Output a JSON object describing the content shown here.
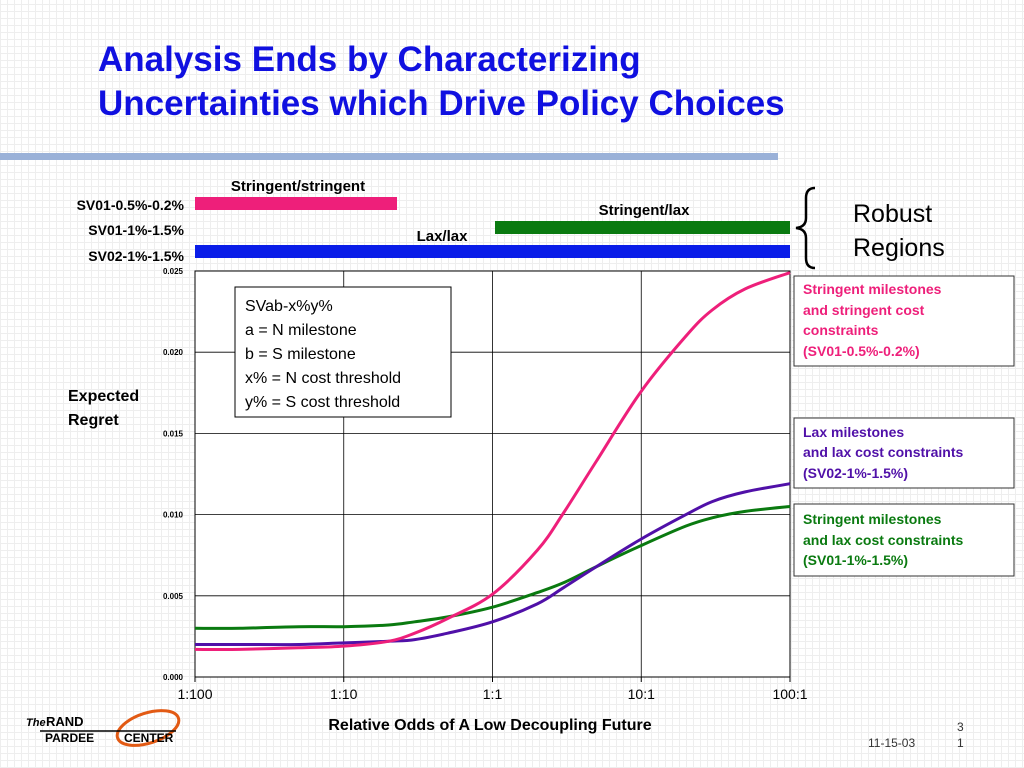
{
  "slide": {
    "title_line1": "Analysis Ends by Characterizing",
    "title_line2": "Uncertainties which Drive Policy Choices",
    "footer_date": "11-15-03",
    "footer_page_top": "3",
    "footer_page_bottom": "1",
    "logo": {
      "word_the": "The",
      "word_rand": "RAND",
      "word_pardee": "PARDEE",
      "word_center": "CENTER"
    }
  },
  "colors": {
    "title": "#1010e0",
    "pink": "#ee1f7a",
    "green": "#0a7a10",
    "blue": "#0a1de8",
    "purple": "#5010a8"
  },
  "robust": {
    "bars": [
      {
        "label": "SV01-0.5%-0.2%",
        "name": "Stringent/stringent",
        "from": "1:100",
        "to": "1:5",
        "color": "pink"
      },
      {
        "label": "SV01-1%-1.5%",
        "name": "Stringent/lax",
        "from": "1:1",
        "to": "100:1",
        "color": "green"
      },
      {
        "label": "SV02-1%-1.5%",
        "name": "Lax/lax",
        "from": "1:100",
        "to": "100:1",
        "color": "blue"
      }
    ],
    "brace_label_line1": "Robust",
    "brace_label_line2": "Regions"
  },
  "legend_box": {
    "lines": [
      "SVab-x%y%",
      "a = N milestone",
      "b = S milestone",
      "x% = N cost threshold",
      "y% = S cost threshold"
    ]
  },
  "callouts": [
    {
      "lines": [
        "Stringent milestones",
        "and stringent cost",
        "constraints",
        "(SV01-0.5%-0.2%)"
      ],
      "color": "pink"
    },
    {
      "lines": [
        "Lax milestones",
        "and lax cost constraints",
        "(SV02-1%-1.5%)"
      ],
      "color": "purple"
    },
    {
      "lines": [
        "Stringent milestones",
        "and lax cost constraints",
        "(SV01-1%-1.5%)"
      ],
      "color": "green"
    }
  ],
  "chart_data": {
    "type": "line",
    "xlabel": "Relative Odds of A Low Decoupling Future",
    "ylabel": "Expected Regret",
    "x_scale": "log",
    "x_ticks": [
      "1:100",
      "1:10",
      "1:1",
      "10:1",
      "100:1"
    ],
    "x": [
      0.01,
      0.02,
      0.05,
      0.1,
      0.2,
      0.3,
      0.5,
      1,
      2,
      3,
      5,
      10,
      20,
      30,
      50,
      100
    ],
    "ylim": [
      0,
      0.025
    ],
    "y_ticks": [
      "0.000",
      "0.005",
      "0.010",
      "0.015",
      "0.020",
      "0.025"
    ],
    "grid": true,
    "series": [
      {
        "name": "SV01-0.5%-0.2%",
        "color": "pink",
        "values": [
          0.0017,
          0.0017,
          0.0018,
          0.0019,
          0.0022,
          0.0027,
          0.0036,
          0.0051,
          0.0078,
          0.0101,
          0.0133,
          0.0176,
          0.021,
          0.0226,
          0.0239,
          0.0249
        ]
      },
      {
        "name": "SV02-1%-1.5%",
        "color": "purple",
        "values": [
          0.002,
          0.002,
          0.002,
          0.0021,
          0.0022,
          0.0023,
          0.0027,
          0.0034,
          0.0045,
          0.0055,
          0.0068,
          0.0085,
          0.01,
          0.0108,
          0.0114,
          0.0119
        ]
      },
      {
        "name": "SV01-1%-1.5%",
        "color": "green",
        "values": [
          0.003,
          0.003,
          0.0031,
          0.0031,
          0.0032,
          0.0034,
          0.0037,
          0.0043,
          0.0052,
          0.0058,
          0.0068,
          0.0081,
          0.0093,
          0.0098,
          0.0102,
          0.0105
        ]
      }
    ]
  }
}
